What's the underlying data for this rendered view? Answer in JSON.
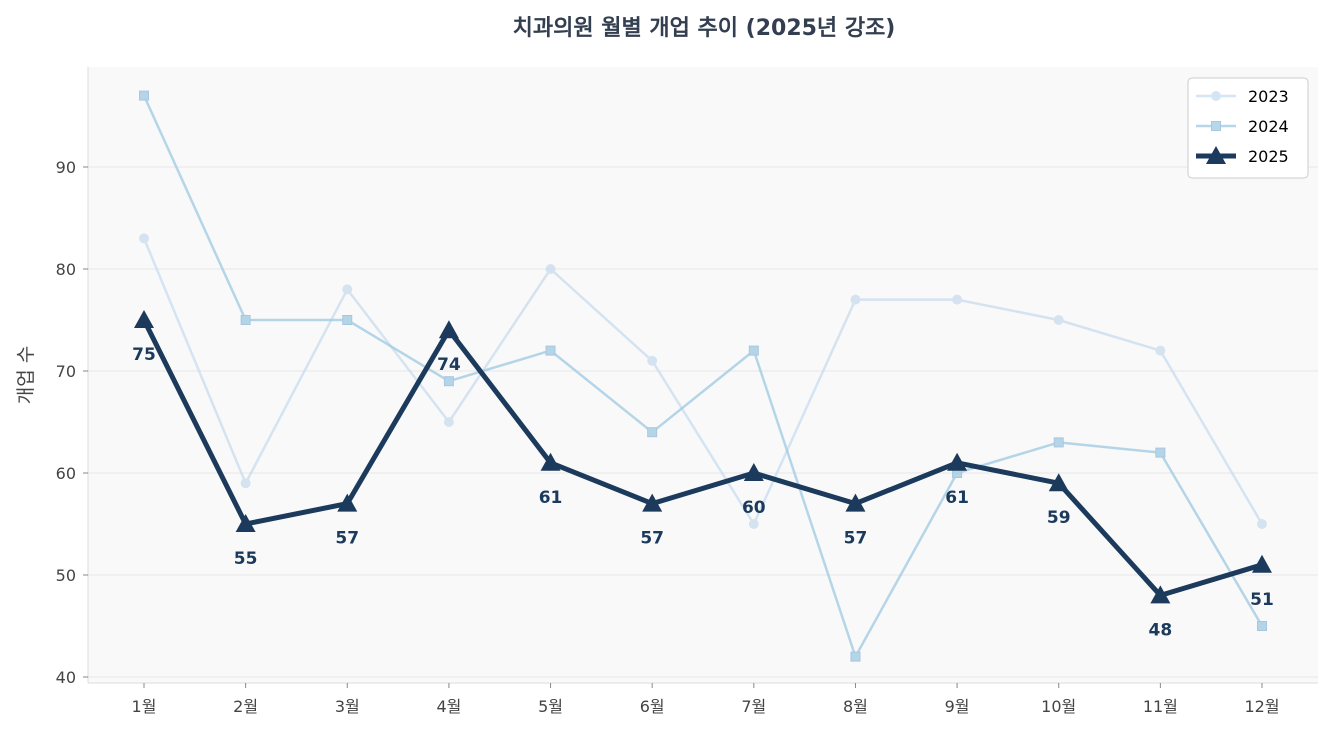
{
  "chart_data": {
    "type": "line",
    "title": "치과의원 월별 개업 추이 (2025년 강조)",
    "xlabel": "",
    "ylabel": "개업 수",
    "categories": [
      "1월",
      "2월",
      "3월",
      "4월",
      "5월",
      "6월",
      "7월",
      "8월",
      "9월",
      "10월",
      "11월",
      "12월"
    ],
    "ylim": [
      39.4,
      99.8
    ],
    "yticks": [
      40,
      50,
      60,
      70,
      80,
      90
    ],
    "grid": true,
    "legend": "top-right",
    "series": [
      {
        "name": "2023",
        "marker": "circle",
        "color": "#c6dbef",
        "values": [
          83,
          59,
          78,
          65,
          80,
          71,
          55,
          77,
          77,
          75,
          72,
          55
        ]
      },
      {
        "name": "2024",
        "marker": "square",
        "color": "#9ecae1",
        "values": [
          97,
          75,
          75,
          69,
          72,
          64,
          72,
          42,
          60,
          63,
          62,
          45
        ]
      },
      {
        "name": "2025",
        "marker": "triangle",
        "color": "#1b3a5c",
        "values": [
          75,
          55,
          57,
          74,
          61,
          57,
          60,
          57,
          61,
          59,
          48,
          51
        ],
        "data_labels": true
      }
    ]
  }
}
